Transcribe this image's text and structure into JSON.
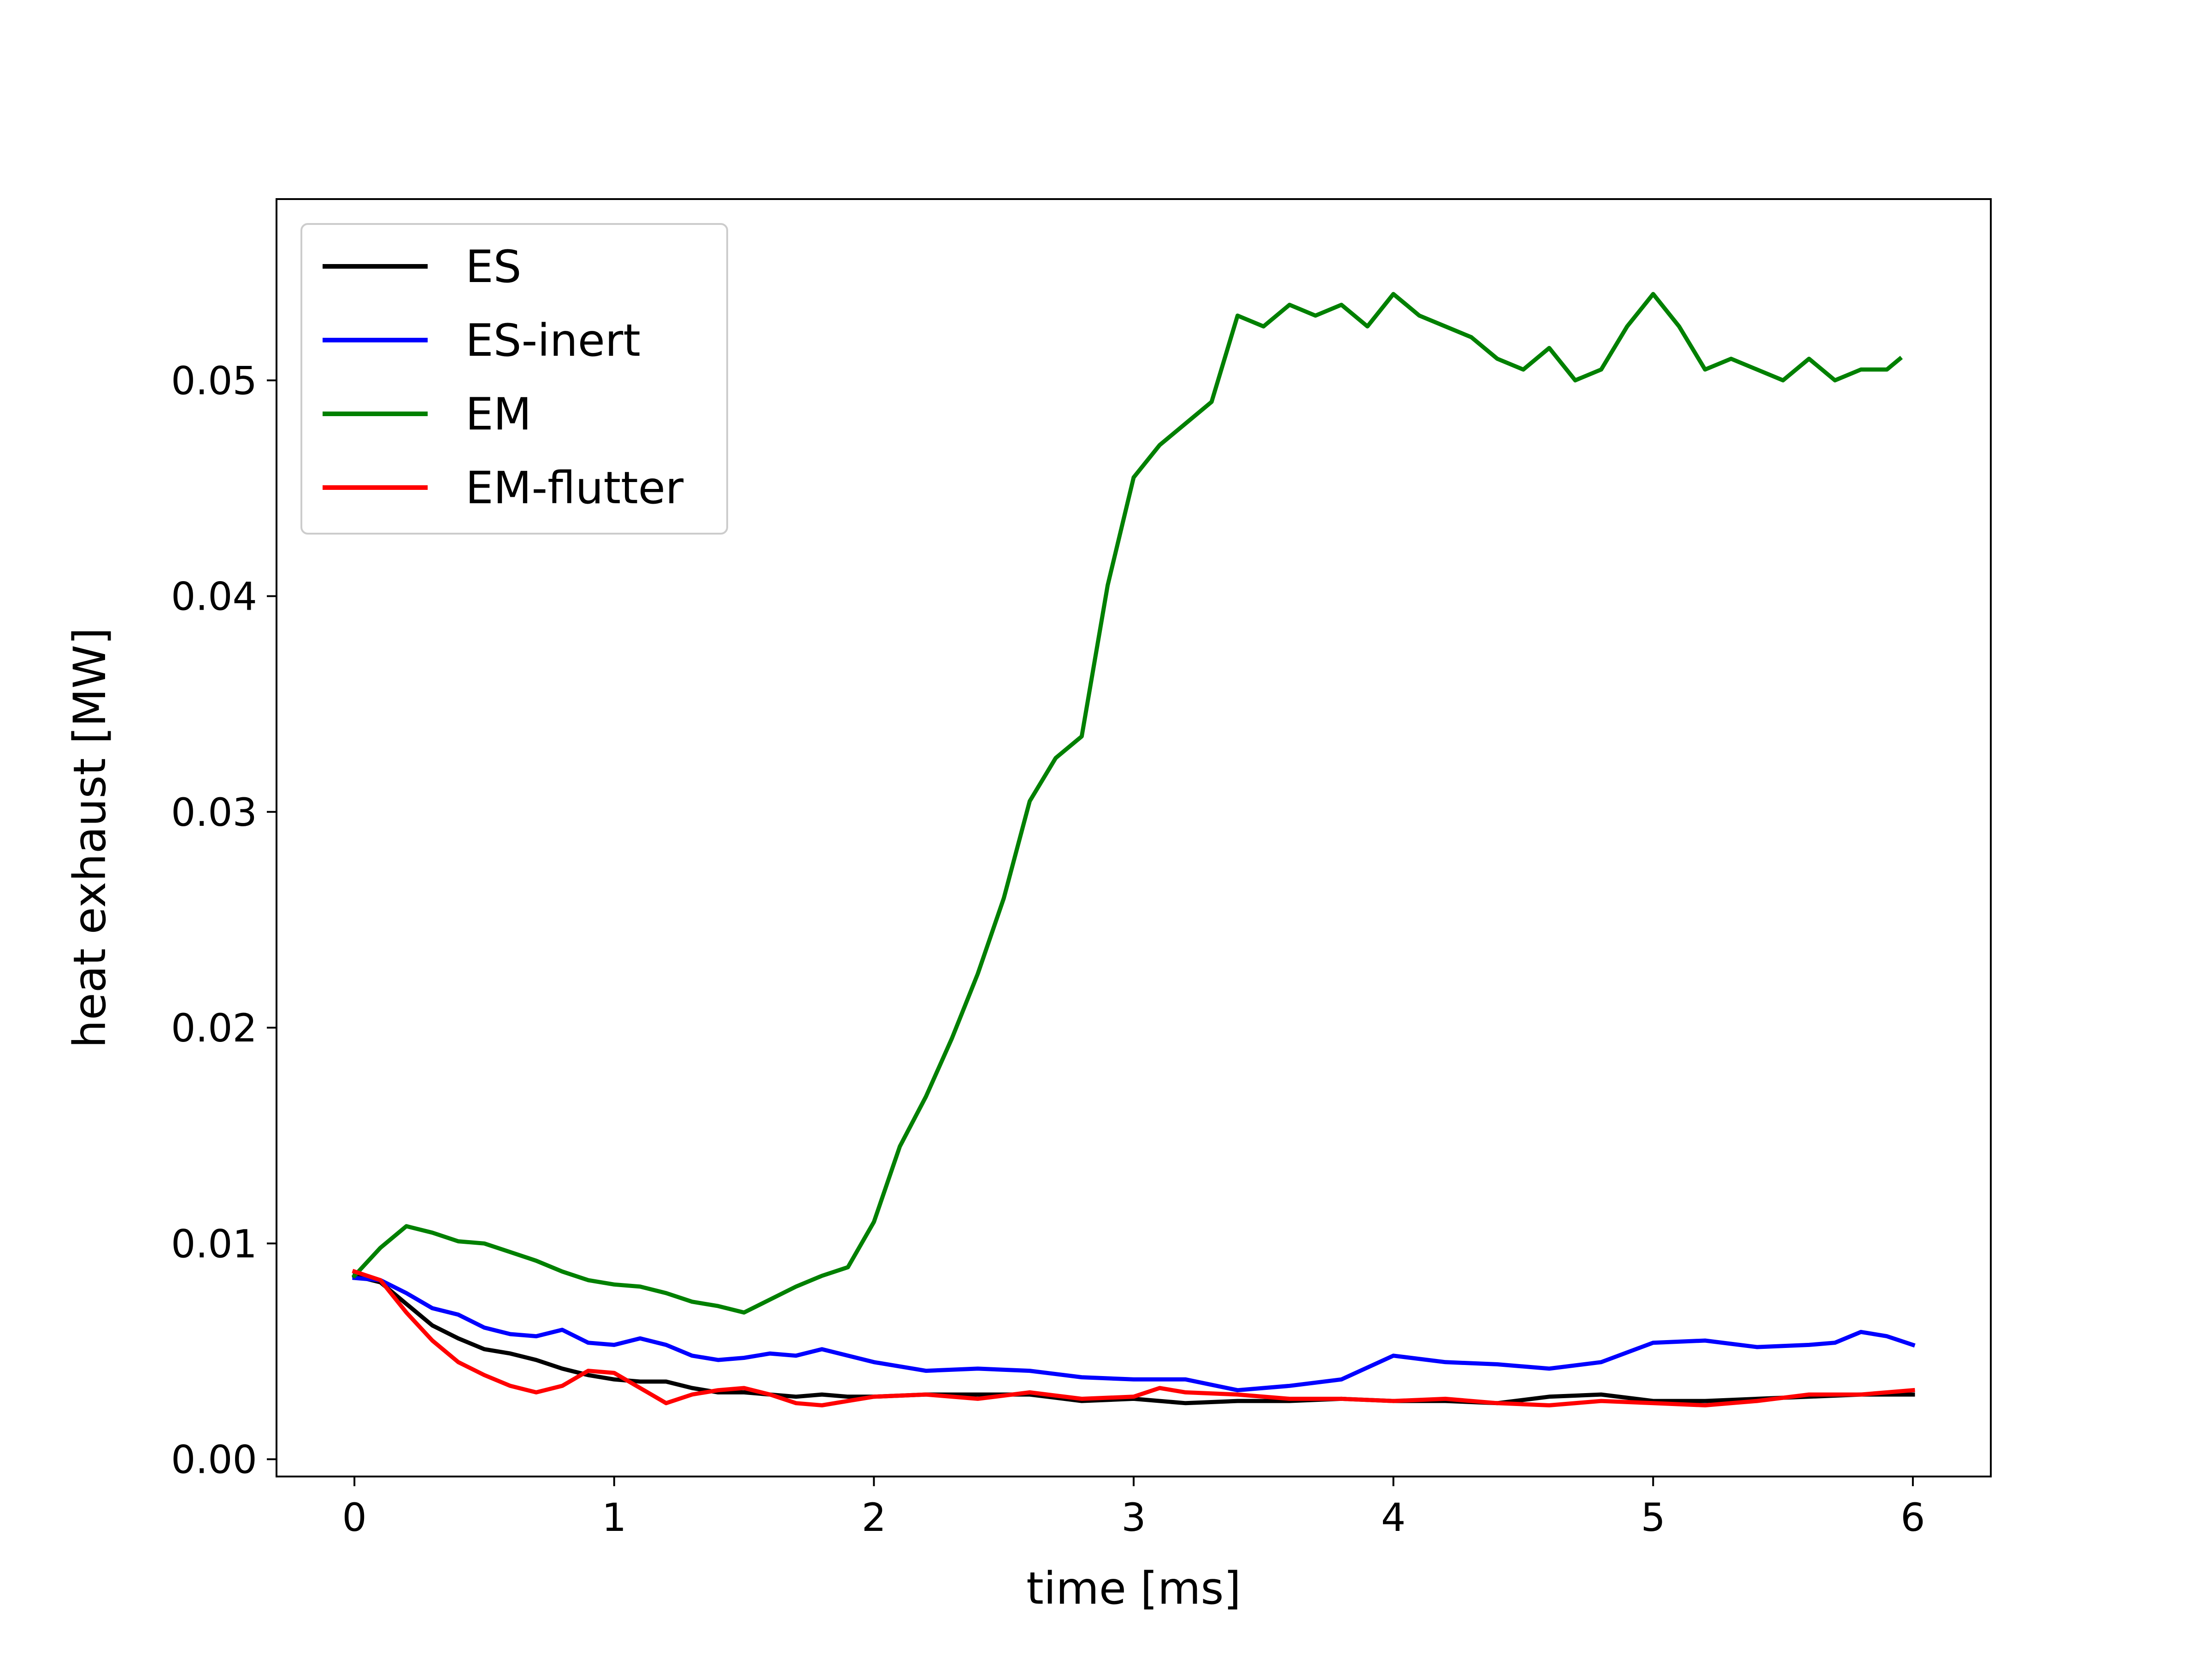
{
  "chart_data": {
    "type": "line",
    "title": "",
    "xlabel": "time [ms]",
    "ylabel": "heat exhaust [MW]",
    "xlim": [
      -0.3,
      6.3
    ],
    "ylim": [
      -0.0008,
      0.0584
    ],
    "xticks": [
      0,
      1,
      2,
      3,
      4,
      5,
      6
    ],
    "xtick_labels": [
      "0",
      "1",
      "2",
      "3",
      "4",
      "5",
      "6"
    ],
    "yticks": [
      0.0,
      0.01,
      0.02,
      0.03,
      0.04,
      0.05
    ],
    "ytick_labels": [
      "0.00",
      "0.01",
      "0.02",
      "0.03",
      "0.04",
      "0.05"
    ],
    "grid": false,
    "legend_position": "top-left",
    "series": [
      {
        "name": "ES",
        "color": "#000000",
        "x": [
          0,
          0.1,
          0.2,
          0.3,
          0.4,
          0.5,
          0.6,
          0.7,
          0.8,
          0.9,
          1.0,
          1.1,
          1.2,
          1.3,
          1.4,
          1.5,
          1.6,
          1.7,
          1.8,
          1.9,
          2.0,
          2.2,
          2.4,
          2.6,
          2.8,
          3.0,
          3.2,
          3.4,
          3.6,
          3.8,
          4.0,
          4.2,
          4.4,
          4.6,
          4.8,
          5.0,
          5.2,
          5.4,
          5.6,
          5.8,
          6.0
        ],
        "y": [
          0.0085,
          0.0082,
          0.0072,
          0.0062,
          0.0056,
          0.0051,
          0.0049,
          0.0046,
          0.0042,
          0.0039,
          0.0037,
          0.0036,
          0.0036,
          0.0033,
          0.0031,
          0.0031,
          0.003,
          0.0029,
          0.003,
          0.0029,
          0.0029,
          0.003,
          0.003,
          0.003,
          0.0027,
          0.0028,
          0.0026,
          0.0027,
          0.0027,
          0.0028,
          0.0027,
          0.0027,
          0.0026,
          0.0029,
          0.003,
          0.0027,
          0.0027,
          0.0028,
          0.0029,
          0.003,
          0.003
        ]
      },
      {
        "name": "ES-inert",
        "color": "#0000ff",
        "x": [
          0,
          0.1,
          0.2,
          0.3,
          0.4,
          0.5,
          0.6,
          0.7,
          0.8,
          0.9,
          1.0,
          1.1,
          1.2,
          1.3,
          1.4,
          1.5,
          1.6,
          1.7,
          1.8,
          1.9,
          2.0,
          2.2,
          2.4,
          2.6,
          2.8,
          3.0,
          3.2,
          3.4,
          3.6,
          3.8,
          4.0,
          4.2,
          4.4,
          4.6,
          4.8,
          5.0,
          5.2,
          5.4,
          5.6,
          5.7,
          5.8,
          5.9,
          6.0
        ],
        "y": [
          0.0084,
          0.0083,
          0.0077,
          0.007,
          0.0067,
          0.0061,
          0.0058,
          0.0057,
          0.006,
          0.0054,
          0.0053,
          0.0056,
          0.0053,
          0.0048,
          0.0046,
          0.0047,
          0.0049,
          0.0048,
          0.0051,
          0.0048,
          0.0045,
          0.0041,
          0.0042,
          0.0041,
          0.0038,
          0.0037,
          0.0037,
          0.0032,
          0.0034,
          0.0037,
          0.0048,
          0.0045,
          0.0044,
          0.0042,
          0.0045,
          0.0054,
          0.0055,
          0.0052,
          0.0053,
          0.0054,
          0.0059,
          0.0057,
          0.0053
        ]
      },
      {
        "name": "EM",
        "color": "#008000",
        "x": [
          0,
          0.1,
          0.2,
          0.3,
          0.4,
          0.5,
          0.6,
          0.7,
          0.8,
          0.9,
          1.0,
          1.1,
          1.2,
          1.3,
          1.4,
          1.5,
          1.6,
          1.7,
          1.8,
          1.9,
          2.0,
          2.1,
          2.2,
          2.3,
          2.4,
          2.5,
          2.6,
          2.7,
          2.8,
          2.9,
          3.0,
          3.1,
          3.2,
          3.3,
          3.4,
          3.5,
          3.6,
          3.7,
          3.8,
          3.9,
          4.0,
          4.1,
          4.2,
          4.3,
          4.4,
          4.5,
          4.6,
          4.7,
          4.8,
          4.9,
          5.0,
          5.1,
          5.2,
          5.3,
          5.4,
          5.5,
          5.6,
          5.7,
          5.8,
          5.9,
          5.95
        ],
        "y": [
          0.0085,
          0.0098,
          0.0108,
          0.0105,
          0.0101,
          0.01,
          0.0096,
          0.0092,
          0.0087,
          0.0083,
          0.0081,
          0.008,
          0.0077,
          0.0073,
          0.0071,
          0.0068,
          0.0074,
          0.008,
          0.0085,
          0.0089,
          0.011,
          0.0145,
          0.0168,
          0.0195,
          0.0225,
          0.026,
          0.0305,
          0.0325,
          0.0335,
          0.0405,
          0.0455,
          0.047,
          0.048,
          0.049,
          0.053,
          0.0525,
          0.0535,
          0.053,
          0.0535,
          0.0525,
          0.054,
          0.053,
          0.0525,
          0.052,
          0.051,
          0.0505,
          0.0515,
          0.05,
          0.0505,
          0.0525,
          0.054,
          0.0525,
          0.0505,
          0.051,
          0.0505,
          0.05,
          0.051,
          0.05,
          0.0505,
          0.0505,
          0.051
        ]
      },
      {
        "name": "EM-flutter",
        "color": "#ff0000",
        "x": [
          0,
          0.1,
          0.2,
          0.3,
          0.4,
          0.5,
          0.6,
          0.7,
          0.8,
          0.9,
          1.0,
          1.1,
          1.2,
          1.3,
          1.4,
          1.5,
          1.6,
          1.7,
          1.8,
          1.9,
          2.0,
          2.2,
          2.4,
          2.6,
          2.8,
          3.0,
          3.1,
          3.2,
          3.4,
          3.6,
          3.8,
          4.0,
          4.2,
          4.4,
          4.6,
          4.8,
          5.0,
          5.2,
          5.4,
          5.6,
          5.8,
          6.0
        ],
        "y": [
          0.0087,
          0.0083,
          0.0068,
          0.0055,
          0.0045,
          0.0039,
          0.0034,
          0.0031,
          0.0034,
          0.0041,
          0.004,
          0.0033,
          0.0026,
          0.003,
          0.0032,
          0.0033,
          0.003,
          0.0026,
          0.0025,
          0.0027,
          0.0029,
          0.003,
          0.0028,
          0.0031,
          0.0028,
          0.0029,
          0.0033,
          0.0031,
          0.003,
          0.0028,
          0.0028,
          0.0027,
          0.0028,
          0.0026,
          0.0025,
          0.0027,
          0.0026,
          0.0025,
          0.0027,
          0.003,
          0.003,
          0.0032
        ]
      }
    ]
  }
}
